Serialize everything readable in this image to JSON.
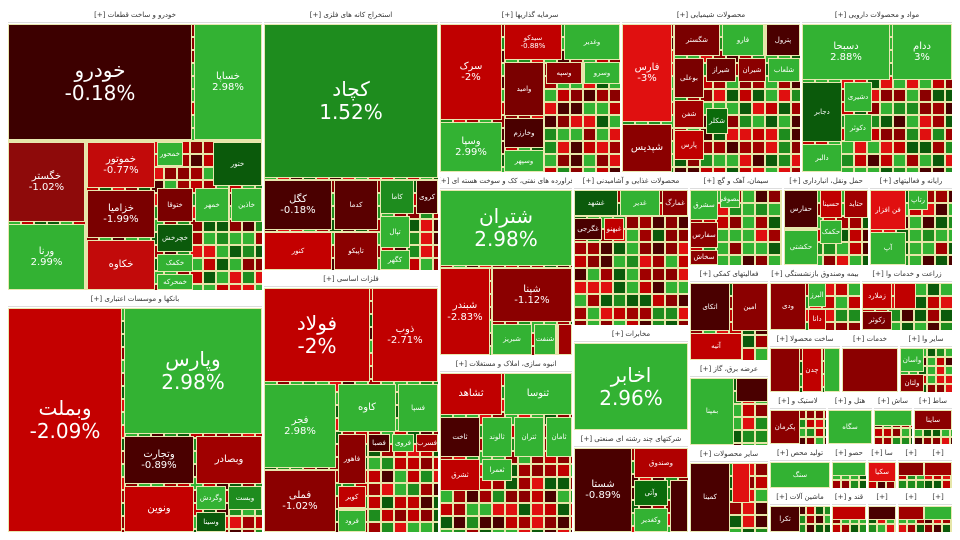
{
  "sectors": [
    {
      "title": "خودرو و ساخت قطعات [+]",
      "tiles": [
        {
          "symbol": "خودرو",
          "change": "-0.18%",
          "color": "#3d0000"
        },
        {
          "symbol": "خساپا",
          "change": "2.98%",
          "color": "#33b233"
        },
        {
          "symbol": "خگستر",
          "change": "-1.02%",
          "color": "#8e0a0a"
        },
        {
          "symbol": "ورنا",
          "change": "2.99%",
          "color": "#33b233"
        },
        {
          "symbol": "خموتور",
          "change": "-0.77%",
          "color": "#c20a0a"
        },
        {
          "symbol": "خزامیا",
          "change": "-1.99%",
          "color": "#7a0000"
        },
        {
          "symbol": "خکاوه",
          "change": "",
          "color": "#c20a0a"
        },
        {
          "symbol": "خمحور",
          "change": "",
          "color": "#33b233"
        },
        {
          "symbol": "ختور",
          "change": "",
          "color": "#0b5a0b"
        },
        {
          "symbol": "ختوقا",
          "change": "",
          "color": "#7a0000"
        },
        {
          "symbol": "خمهر",
          "change": "",
          "color": "#33b233"
        },
        {
          "symbol": "خاذین",
          "change": "",
          "color": "#33b233"
        },
        {
          "symbol": "خچرخش",
          "change": "",
          "color": "#0b5a0b"
        },
        {
          "symbol": "خکمک",
          "change": "",
          "color": "#33b233"
        },
        {
          "symbol": "خمحرکه",
          "change": "",
          "color": "#33b233"
        }
      ]
    },
    {
      "title": "بانکها و موسسات اعتباری [+]",
      "tiles": [
        {
          "symbol": "وبملت",
          "change": "-2.09%",
          "color": "#c40000"
        },
        {
          "symbol": "وپارس",
          "change": "2.98%",
          "color": "#33b233"
        },
        {
          "symbol": "وتجارت",
          "change": "-0.89%",
          "color": "#4a0000"
        },
        {
          "symbol": "وبصادر",
          "change": "",
          "color": "#a00000"
        },
        {
          "symbol": "ونوین",
          "change": "",
          "color": "#c40000"
        },
        {
          "symbol": "وگردش",
          "change": "",
          "color": "#33b233"
        },
        {
          "symbol": "وبست",
          "change": "",
          "color": "#1e8c1e"
        },
        {
          "symbol": "وسینا",
          "change": "",
          "color": "#0b5a0b"
        }
      ]
    },
    {
      "title": "استخراج کانه های فلزی [+]",
      "tiles": [
        {
          "symbol": "کچاد",
          "change": "1.52%",
          "color": "#1e8c1e"
        },
        {
          "symbol": "کگل",
          "change": "-0.18%",
          "color": "#4a0000"
        },
        {
          "symbol": "کدما",
          "change": "",
          "color": "#5a0000"
        },
        {
          "symbol": "کاما",
          "change": "",
          "color": "#1e8c1e"
        },
        {
          "symbol": "کروی",
          "change": "",
          "color": "#4a0000"
        },
        {
          "symbol": "کنور",
          "change": "",
          "color": "#c40000"
        },
        {
          "symbol": "تاپیکو",
          "change": "",
          "color": "#8b0000"
        },
        {
          "symbol": "تپال",
          "change": "",
          "color": "#33b233"
        },
        {
          "symbol": "کگهر",
          "change": "",
          "color": "#33b233"
        }
      ]
    },
    {
      "title": "فلزات اساسی [+]",
      "tiles": [
        {
          "symbol": "فولاد",
          "change": "-2%",
          "color": "#c00000"
        },
        {
          "symbol": "ذوب",
          "change": "-2.71%",
          "color": "#c00000"
        },
        {
          "symbol": "فجر",
          "change": "2.98%",
          "color": "#33b233"
        },
        {
          "symbol": "فملی",
          "change": "-1.02%",
          "color": "#8b0000"
        },
        {
          "symbol": "کاوه",
          "change": "",
          "color": "#33b233"
        },
        {
          "symbol": "فسپا",
          "change": "",
          "color": "#33b233"
        },
        {
          "symbol": "فاهور",
          "change": "",
          "color": "#8b0000"
        },
        {
          "symbol": "فصبا",
          "change": "",
          "color": "#4a0000"
        },
        {
          "symbol": "فروی",
          "change": "",
          "color": "#33b233"
        },
        {
          "symbol": "فسرب",
          "change": "",
          "color": "#a00000"
        },
        {
          "symbol": "کویر",
          "change": "",
          "color": "#c00000"
        },
        {
          "symbol": "فرود",
          "change": "",
          "color": "#33b233"
        }
      ]
    },
    {
      "title": "سرمایه گذاریها [+]",
      "tiles": [
        {
          "symbol": "سرک",
          "change": "-2%",
          "color": "#c00000"
        },
        {
          "symbol": "سیدکو",
          "change": "-0.88%",
          "color": "#c00000"
        },
        {
          "symbol": "وغدیر",
          "change": "",
          "color": "#33b233"
        },
        {
          "symbol": "وسپا",
          "change": "2.99%",
          "color": "#33b233"
        },
        {
          "symbol": "وامید",
          "change": "",
          "color": "#7a0000"
        },
        {
          "symbol": "وسپه",
          "change": "",
          "color": "#8b0000"
        },
        {
          "symbol": "وسرو",
          "change": "",
          "color": "#33b233"
        },
        {
          "symbol": "وخارزم",
          "change": "",
          "color": "#4a0000"
        },
        {
          "symbol": "وسپهر",
          "change": "",
          "color": "#33b233"
        }
      ]
    },
    {
      "title": "محصولات شیمیایی [+]",
      "tiles": [
        {
          "symbol": "فارس",
          "change": "-3%",
          "color": "#e01010"
        },
        {
          "symbol": "شپدیس",
          "change": "",
          "color": "#8b0000"
        },
        {
          "symbol": "شگستر",
          "change": "",
          "color": "#7a0000"
        },
        {
          "symbol": "فارو",
          "change": "",
          "color": "#33b233"
        },
        {
          "symbol": "پترول",
          "change": "",
          "color": "#4a0000"
        },
        {
          "symbol": "بوعلی",
          "change": "",
          "color": "#7a0000"
        },
        {
          "symbol": "شیراز",
          "change": "",
          "color": "#6a0000"
        },
        {
          "symbol": "شیران",
          "change": "",
          "color": "#8b0000"
        },
        {
          "symbol": "شلعاب",
          "change": "",
          "color": "#33b233"
        },
        {
          "symbol": "شفن",
          "change": "",
          "color": "#a00000"
        },
        {
          "symbol": "پارس",
          "change": "",
          "color": "#c00000"
        },
        {
          "symbol": "شکلر",
          "change": "",
          "color": "#0b6b0b"
        }
      ]
    },
    {
      "title": "مواد و محصولات دارویی [+]",
      "tiles": [
        {
          "symbol": "دسبحا",
          "change": "2.88%",
          "color": "#33b233"
        },
        {
          "symbol": "ددام",
          "change": "3%",
          "color": "#33b233"
        },
        {
          "symbol": "دجابر",
          "change": "",
          "color": "#0b5a0b"
        },
        {
          "symbol": "دشیری",
          "change": "",
          "color": "#33b233"
        },
        {
          "symbol": "دکوثر",
          "change": "",
          "color": "#33b233"
        },
        {
          "symbol": "دالبر",
          "change": "",
          "color": "#33b233"
        }
      ]
    },
    {
      "title": "فراورده های نفتی، کک و سوخت هسته ای [+]",
      "tiles": [
        {
          "symbol": "شتران",
          "change": "2.98%",
          "color": "#33b233"
        },
        {
          "symbol": "شبندر",
          "change": "-2.83%",
          "color": "#c00000"
        },
        {
          "symbol": "شپنا",
          "change": "-1.12%",
          "color": "#8b0000"
        },
        {
          "symbol": "شبریز",
          "change": "",
          "color": "#33b233"
        },
        {
          "symbol": "شنفت",
          "change": "",
          "color": "#33b233"
        },
        {
          "symbol": "",
          "change": "",
          "color": "#a00000"
        }
      ]
    },
    {
      "title": "انبوه سازی، املاک و مستغلات [+]",
      "tiles": [
        {
          "symbol": "ثشاهد",
          "change": "",
          "color": "#c00000"
        },
        {
          "symbol": "ثنوسا",
          "change": "",
          "color": "#33b233"
        },
        {
          "symbol": "ثاخت",
          "change": "",
          "color": "#4a0000"
        },
        {
          "symbol": "ثالوند",
          "change": "",
          "color": "#33b233"
        },
        {
          "symbol": "ثتران",
          "change": "",
          "color": "#33b233"
        },
        {
          "symbol": "ثامان",
          "change": "",
          "color": "#33b233"
        },
        {
          "symbol": "ثشرق",
          "change": "",
          "color": "#c00000"
        },
        {
          "symbol": "ثعمرا",
          "change": "",
          "color": "#33b233"
        }
      ]
    },
    {
      "title": "محصولات غذایی و آشامیدنی [+]",
      "tiles": [
        {
          "symbol": "غشهد",
          "change": "",
          "color": "#0b5a0b"
        },
        {
          "symbol": "غدیر",
          "change": "",
          "color": "#33b233"
        },
        {
          "symbol": "غمارگ",
          "change": "",
          "color": "#8b0000"
        },
        {
          "symbol": "غگرجی",
          "change": "",
          "color": "#4a0000"
        },
        {
          "symbol": "غبهنو",
          "change": "",
          "color": "#c00000"
        }
      ]
    },
    {
      "title": "مخابرات [+]",
      "tiles": [
        {
          "symbol": "اخابر",
          "change": "2.96%",
          "color": "#33b233"
        }
      ]
    },
    {
      "title": "شرکتهای چند رشته ای صنعتی [+]",
      "tiles": [
        {
          "symbol": "شستا",
          "change": "-0.89%",
          "color": "#4a0000"
        },
        {
          "symbol": "وصندوق",
          "change": "",
          "color": "#b00000"
        },
        {
          "symbol": "وآتی",
          "change": "",
          "color": "#0b6b0b"
        },
        {
          "symbol": "وکغدیر",
          "change": "",
          "color": "#33b233"
        },
        {
          "symbol": "",
          "change": "",
          "color": "#4a0000"
        }
      ]
    },
    {
      "title": "سیمان، آهک و گچ [+]",
      "tiles": [
        {
          "symbol": "سشرق",
          "change": "",
          "color": "#33b233"
        },
        {
          "symbol": "سفارس",
          "change": "",
          "color": "#8b0000"
        },
        {
          "symbol": "سخاش",
          "change": "",
          "color": "#8b0000"
        },
        {
          "symbol": "سصوفی",
          "change": "",
          "color": "#33b233"
        }
      ]
    },
    {
      "title": "حمل ونقل، انبارداری [+]",
      "tiles": [
        {
          "symbol": "حفارس",
          "change": "",
          "color": "#4a0000"
        },
        {
          "symbol": "حسینا",
          "change": "",
          "color": "#c00000"
        },
        {
          "symbol": "حتاید",
          "change": "",
          "color": "#a00000"
        },
        {
          "symbol": "حکشتی",
          "change": "",
          "color": "#33b233"
        },
        {
          "symbol": "حکمک",
          "change": "",
          "color": "#33b233"
        }
      ]
    },
    {
      "title": "رایانه و فعالیتهای [+]",
      "tiles": [
        {
          "symbol": "فن افزار",
          "change": "",
          "color": "#e01010"
        },
        {
          "symbol": "آپ",
          "change": "",
          "color": "#33b233"
        },
        {
          "symbol": "رتاپ",
          "change": "",
          "color": "#33b233"
        }
      ]
    },
    {
      "title": "فعالیتهای کمکی [+]",
      "tiles": [
        {
          "symbol": "اتکای",
          "change": "",
          "color": "#4a0000"
        },
        {
          "symbol": "امین",
          "change": "",
          "color": "#8b0000"
        },
        {
          "symbol": "آتیه",
          "change": "",
          "color": "#c00000"
        }
      ]
    },
    {
      "title": "بیمه وصندوق بازنشستگی [+]",
      "tiles": [
        {
          "symbol": "ودی",
          "change": "",
          "color": "#8b0000"
        },
        {
          "symbol": "البرز",
          "change": "",
          "color": "#33b233"
        },
        {
          "symbol": "دانا",
          "change": "",
          "color": "#c00000"
        }
      ]
    },
    {
      "title": "زراعت و خدمات وا [+]",
      "tiles": [
        {
          "symbol": "زملارد",
          "change": "",
          "color": "#c00000"
        },
        {
          "symbol": "زکوثر",
          "change": "",
          "color": "#7a0000"
        },
        {
          "symbol": "",
          "change": "",
          "color": "#c00000"
        }
      ]
    },
    {
      "title": "عرضه برق، گاز [+]",
      "tiles": [
        {
          "symbol": "بمپنا",
          "change": "",
          "color": "#33b233"
        },
        {
          "symbol": "",
          "change": "",
          "color": "#4a0000"
        }
      ]
    },
    {
      "title": "سایر محصولات [+]",
      "tiles": [
        {
          "symbol": "کمینا",
          "change": "",
          "color": "#4a0000"
        },
        {
          "symbol": "",
          "change": "",
          "color": "#e01010"
        }
      ]
    },
    {
      "title": "ساخت محصولا [+]",
      "tiles": [
        {
          "symbol": "",
          "change": "",
          "color": "#8b0000"
        },
        {
          "symbol": "چدن",
          "change": "",
          "color": "#c00000"
        },
        {
          "symbol": "",
          "change": "",
          "color": "#33b233"
        }
      ]
    },
    {
      "title": "خدمات [+]",
      "tiles": [
        {
          "symbol": "",
          "change": "",
          "color": "#8b0000"
        }
      ]
    },
    {
      "title": "سایر وا [+]",
      "tiles": [
        {
          "symbol": "واسان",
          "change": "",
          "color": "#33b233"
        },
        {
          "symbol": "ولتان",
          "change": "",
          "color": "#8b0000"
        }
      ]
    },
    {
      "title": "لاستیک و [+]",
      "tiles": [
        {
          "symbol": "پکرمان",
          "change": "",
          "color": "#8b0000"
        }
      ]
    },
    {
      "title": "هتل و [+]",
      "tiles": [
        {
          "symbol": "سگاه",
          "change": "",
          "color": "#33b233"
        }
      ]
    },
    {
      "title": "ساش [+]",
      "tiles": [
        {
          "symbol": "",
          "change": "",
          "color": "#33b233"
        }
      ]
    },
    {
      "title": "ساط [+]",
      "tiles": [
        {
          "symbol": "ساینا",
          "change": "",
          "color": "#8b0000"
        }
      ]
    },
    {
      "title": "تولید محص [+]",
      "tiles": [
        {
          "symbol": "سنگ",
          "change": "",
          "color": "#33b233"
        }
      ]
    },
    {
      "title": "ماشین آلات [+]",
      "tiles": [
        {
          "symbol": "تکرا",
          "change": "",
          "color": "#4a0000"
        }
      ]
    },
    {
      "title": "حصو [+]",
      "tiles": [
        {
          "symbol": "",
          "change": "",
          "color": "#33b233"
        }
      ]
    },
    {
      "title": "سا [+]",
      "tiles": [
        {
          "symbol": "سکیا",
          "change": "",
          "color": "#e01010"
        }
      ]
    },
    {
      "title": "[+]",
      "tiles": [
        {
          "symbol": "",
          "change": "",
          "color": "#8b0000"
        }
      ]
    },
    {
      "title": "[+]",
      "tiles": [
        {
          "symbol": "",
          "change": "",
          "color": "#a00000"
        }
      ]
    },
    {
      "title": "قند و [+]",
      "tiles": [
        {
          "symbol": "",
          "change": "",
          "color": "#c00000"
        }
      ]
    },
    {
      "title": "[+]",
      "tiles": [
        {
          "symbol": "",
          "change": "",
          "color": "#4a0000"
        }
      ]
    },
    {
      "title": "[+]",
      "tiles": [
        {
          "symbol": "",
          "change": "",
          "color": "#a00000"
        }
      ]
    },
    {
      "title": "[+]",
      "tiles": [
        {
          "symbol": "",
          "change": "",
          "color": "#33b233"
        }
      ]
    }
  ],
  "palette": [
    "#33b233",
    "#1e8c1e",
    "#0b5a0b",
    "#c00000",
    "#8b0000",
    "#4a0000",
    "#e01010",
    "#33b233",
    "#a00000"
  ]
}
